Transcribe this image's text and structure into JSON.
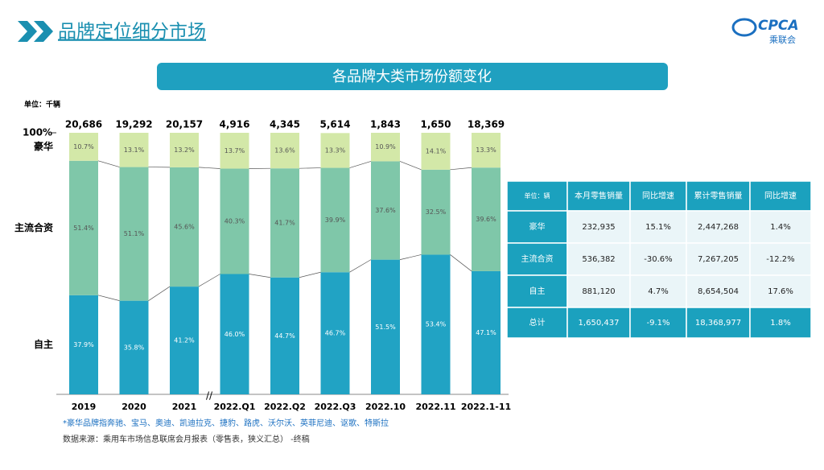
{
  "header": {
    "title": "品牌定位细分市场",
    "logo": "CPCA",
    "logo_sub": "乘联会",
    "banner": "各品牌大类市场份额变化",
    "unit": "单位：千辆"
  },
  "chart_data": {
    "type": "stacked_bar_100",
    "categories": [
      "2019",
      "2020",
      "2021",
      "2022.Q1",
      "2022.Q2",
      "2022.Q3",
      "2022.10",
      "2022.11",
      "2022.1-11"
    ],
    "bar_totals": [
      "20,686",
      "19,292",
      "20,157",
      "4,916",
      "4,345",
      "5,614",
      "1,843",
      "1,650",
      "18,369"
    ],
    "ylim": [
      0,
      100
    ],
    "yticks": [
      {
        "value": 100,
        "label": "100%"
      }
    ],
    "series": [
      {
        "name": "自主",
        "color": "#21a3c4",
        "values": [
          37.9,
          35.8,
          41.2,
          46.0,
          44.7,
          46.7,
          51.5,
          53.4,
          47.1
        ],
        "value_labels": [
          "37.9%",
          "35.8%",
          "41.2%",
          "46.0%",
          "44.7%",
          "46.7%",
          "51.5%",
          "53.4%",
          "47.1%"
        ]
      },
      {
        "name": "主流合资",
        "color": "#7fc7a9",
        "values": [
          51.4,
          51.1,
          45.6,
          40.3,
          41.7,
          39.9,
          37.6,
          32.5,
          39.6
        ],
        "value_labels": [
          "51.4%",
          "51.1%",
          "45.6%",
          "40.3%",
          "41.7%",
          "39.9%",
          "37.6%",
          "32.5%",
          "39.6%"
        ]
      },
      {
        "name": "豪华",
        "color": "#d3e8a8",
        "values": [
          10.7,
          13.1,
          13.2,
          13.7,
          13.6,
          13.3,
          10.9,
          14.1,
          13.3
        ],
        "value_labels": [
          "10.7%",
          "13.1%",
          "13.2%",
          "13.7%",
          "13.6%",
          "13.3%",
          "10.9%",
          "14.1%",
          "13.3%"
        ]
      }
    ]
  },
  "table": {
    "header": [
      "单位：辆",
      "本月零售销量",
      "同比增速",
      "累计零售销量",
      "同比增速"
    ],
    "rows": [
      [
        "豪华",
        "232,935",
        "15.1%",
        "2,447,268",
        "1.4%"
      ],
      [
        "主流合资",
        "536,382",
        "-30.6%",
        "7,267,205",
        "-12.2%"
      ],
      [
        "自主",
        "881,120",
        "4.7%",
        "8,654,504",
        "17.6%"
      ],
      [
        "总计",
        "1,650,437",
        "-9.1%",
        "18,368,977",
        "1.8%"
      ]
    ]
  },
  "notes": [
    "*豪华品牌指奔驰、宝马、奥迪、凯迪拉克、捷豹、路虎、沃尔沃、英菲尼迪、讴歌、特斯拉",
    "数据来源：乘用车市场信息联席会月报表（零售表，狭义汇总） -终稿"
  ]
}
